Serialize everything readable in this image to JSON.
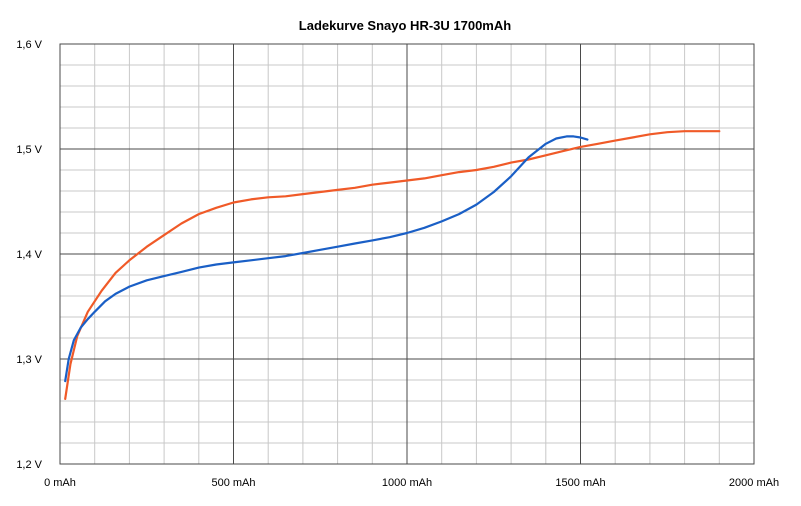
{
  "chart_data": {
    "type": "line",
    "title": "Ladekurve Snayo HR-3U 1700mAh",
    "xlabel": "",
    "ylabel": "",
    "xlim": [
      0,
      2000
    ],
    "ylim": [
      1.2,
      1.6
    ],
    "x_major_ticks": [
      0,
      500,
      1000,
      1500,
      2000
    ],
    "x_tick_labels": [
      "0 mAh",
      "500 mAh",
      "1000 mAh",
      "1500 mAh",
      "2000 mAh"
    ],
    "x_minor_step": 100,
    "y_major_ticks": [
      1.2,
      1.3,
      1.4,
      1.5,
      1.6
    ],
    "y_tick_labels": [
      "1,2 V",
      "1,3 V",
      "1,4 V",
      "1,5 V",
      "1,6 V"
    ],
    "y_minor_step": 0.02,
    "grid": true,
    "legend": "none",
    "series": [
      {
        "color": "#f05a28",
        "x": [
          15,
          30,
          50,
          80,
          120,
          160,
          200,
          250,
          300,
          350,
          400,
          450,
          500,
          550,
          600,
          650,
          700,
          750,
          800,
          850,
          900,
          950,
          1000,
          1050,
          1100,
          1150,
          1200,
          1250,
          1300,
          1350,
          1400,
          1450,
          1500,
          1550,
          1600,
          1650,
          1700,
          1750,
          1800,
          1850,
          1900
        ],
        "values": [
          1.262,
          1.295,
          1.322,
          1.345,
          1.365,
          1.382,
          1.394,
          1.407,
          1.418,
          1.429,
          1.438,
          1.444,
          1.449,
          1.452,
          1.454,
          1.455,
          1.457,
          1.459,
          1.461,
          1.463,
          1.466,
          1.468,
          1.47,
          1.472,
          1.475,
          1.478,
          1.48,
          1.483,
          1.487,
          1.49,
          1.494,
          1.498,
          1.502,
          1.505,
          1.508,
          1.511,
          1.514,
          1.516,
          1.517,
          1.517,
          1.517
        ]
      },
      {
        "color": "#1a5fc6",
        "x": [
          15,
          25,
          40,
          60,
          80,
          100,
          130,
          160,
          200,
          250,
          300,
          350,
          400,
          450,
          500,
          550,
          600,
          650,
          700,
          750,
          800,
          850,
          900,
          950,
          1000,
          1050,
          1100,
          1150,
          1200,
          1250,
          1300,
          1350,
          1400,
          1430,
          1460,
          1480,
          1500,
          1520
        ],
        "values": [
          1.279,
          1.3,
          1.318,
          1.33,
          1.338,
          1.345,
          1.355,
          1.362,
          1.369,
          1.375,
          1.379,
          1.383,
          1.387,
          1.39,
          1.392,
          1.394,
          1.396,
          1.398,
          1.401,
          1.404,
          1.407,
          1.41,
          1.413,
          1.416,
          1.42,
          1.425,
          1.431,
          1.438,
          1.447,
          1.459,
          1.474,
          1.492,
          1.505,
          1.51,
          1.512,
          1.512,
          1.511,
          1.509
        ]
      }
    ]
  }
}
